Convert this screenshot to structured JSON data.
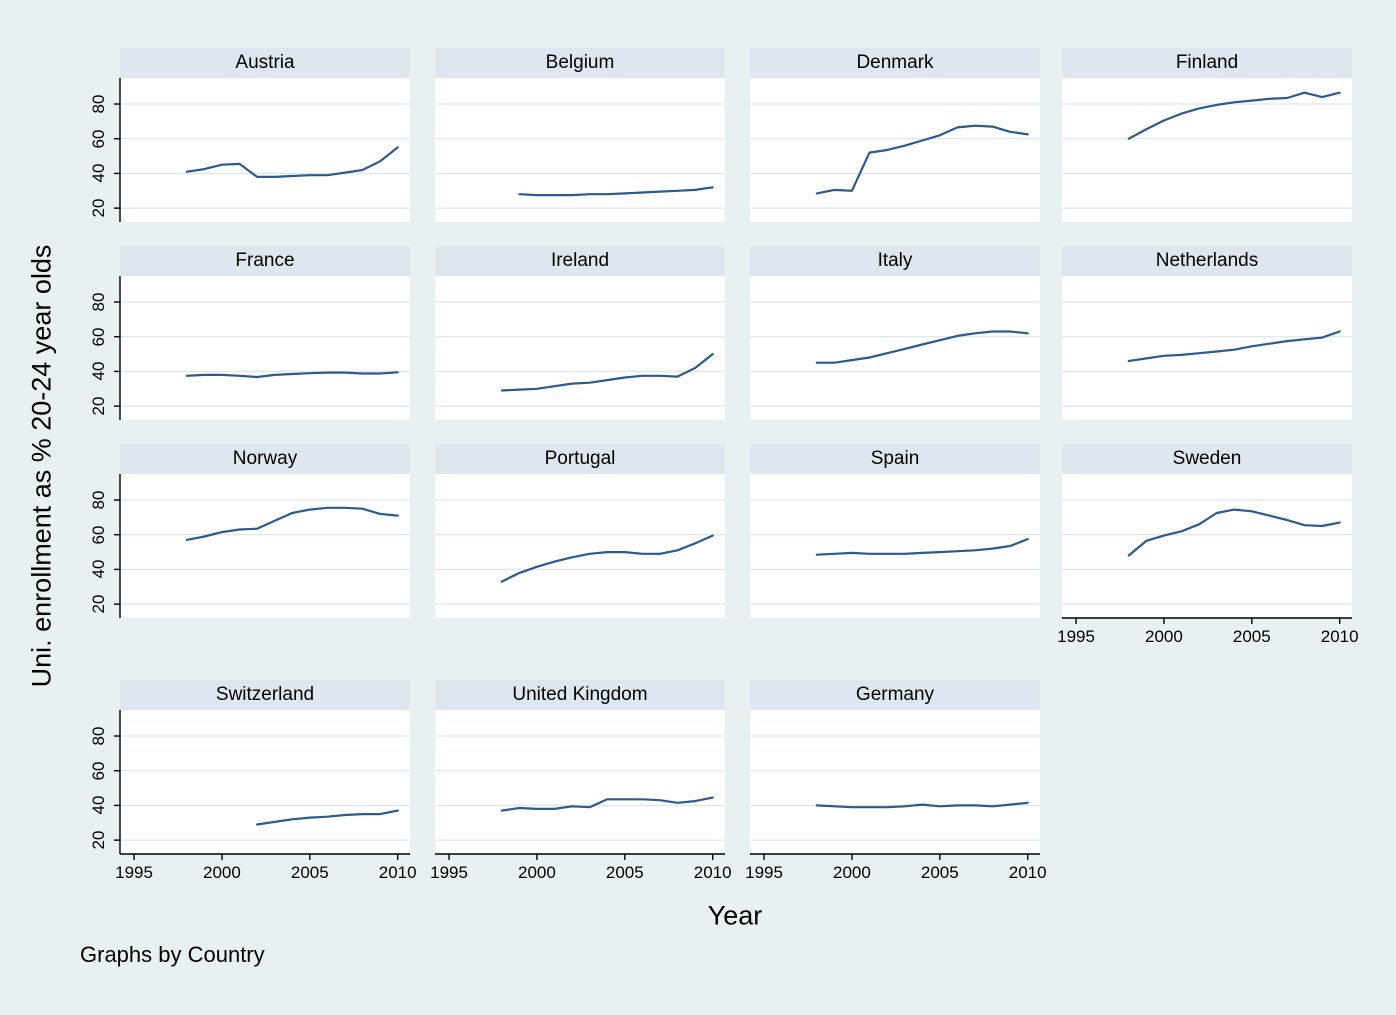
{
  "figure": {
    "ylabel": "Uni. enrollment as % 20-24 year olds",
    "xlabel": "Year",
    "note": "Graphs by Country"
  },
  "colors": {
    "background": "#e9f0f1",
    "panel_header_bg": "#dee7ef",
    "plot_bg": "#ffffff",
    "gridline": "#dce6ec",
    "line": "#2d5a8c",
    "axis": "#000000",
    "text": "#000000"
  },
  "chart_data": {
    "type": "line",
    "small_multiples": true,
    "title": "",
    "xlabel": "Year",
    "ylabel": "Uni. enrollment as % 20-24 year olds",
    "note": "Graphs by Country",
    "y_ticks": [
      20,
      40,
      60,
      80
    ],
    "x_ticks": [
      1995,
      2000,
      2005,
      2010
    ],
    "y_domain": [
      12,
      95
    ],
    "x_domain": [
      1994.2,
      2010.7
    ],
    "grid": true,
    "legend": "none",
    "panels": [
      {
        "name": "Austria",
        "row": 1,
        "col": 1,
        "years": [
          1998,
          1999,
          2000,
          2001,
          2002,
          2003,
          2004,
          2005,
          2006,
          2007,
          2008,
          2009,
          2010
        ],
        "values": [
          41,
          42.5,
          45,
          45.5,
          38,
          38,
          38.5,
          39,
          39,
          40.5,
          42,
          47,
          55
        ]
      },
      {
        "name": "Belgium",
        "row": 1,
        "col": 2,
        "years": [
          1999,
          2000,
          2001,
          2002,
          2003,
          2004,
          2005,
          2006,
          2007,
          2008,
          2009,
          2010
        ],
        "values": [
          28,
          27.5,
          27.5,
          27.5,
          28,
          28,
          28.5,
          29,
          29.5,
          30,
          30.5,
          32
        ]
      },
      {
        "name": "Denmark",
        "row": 1,
        "col": 3,
        "years": [
          1998,
          1999,
          2000,
          2001,
          2002,
          2003,
          2004,
          2005,
          2006,
          2007,
          2008,
          2009,
          2010
        ],
        "values": [
          28.5,
          30.5,
          30,
          52,
          53.5,
          56,
          59,
          62,
          66.5,
          67.5,
          67,
          64,
          62.5
        ]
      },
      {
        "name": "Finland",
        "row": 1,
        "col": 4,
        "years": [
          1998,
          1999,
          2000,
          2001,
          2002,
          2003,
          2004,
          2005,
          2006,
          2007,
          2008,
          2009,
          2010
        ],
        "values": [
          60,
          65.5,
          70.5,
          74.5,
          77.5,
          79.5,
          81,
          82,
          83,
          83.5,
          86.5,
          84,
          86.5
        ]
      },
      {
        "name": "France",
        "row": 2,
        "col": 1,
        "years": [
          1998,
          1999,
          2000,
          2001,
          2002,
          2003,
          2004,
          2005,
          2006,
          2007,
          2008,
          2009,
          2010
        ],
        "values": [
          37.5,
          38,
          38,
          37.5,
          36.8,
          38,
          38.5,
          39,
          39.3,
          39.3,
          38.8,
          38.8,
          39.5
        ]
      },
      {
        "name": "Ireland",
        "row": 2,
        "col": 2,
        "years": [
          1998,
          1999,
          2000,
          2001,
          2002,
          2003,
          2004,
          2005,
          2006,
          2007,
          2008,
          2009,
          2010
        ],
        "values": [
          29,
          29.5,
          30,
          31.5,
          33,
          33.5,
          35,
          36.5,
          37.5,
          37.5,
          37,
          42,
          50
        ]
      },
      {
        "name": "Italy",
        "row": 2,
        "col": 3,
        "years": [
          1998,
          1999,
          2000,
          2001,
          2002,
          2003,
          2004,
          2005,
          2006,
          2007,
          2008,
          2009,
          2010
        ],
        "values": [
          45,
          45,
          46.5,
          48,
          50.5,
          53,
          55.5,
          58,
          60.5,
          62,
          63,
          63,
          62
        ]
      },
      {
        "name": "Netherlands",
        "row": 2,
        "col": 4,
        "years": [
          1998,
          1999,
          2000,
          2001,
          2002,
          2003,
          2004,
          2005,
          2006,
          2007,
          2008,
          2009,
          2010
        ],
        "values": [
          46,
          47.5,
          49,
          49.5,
          50.5,
          51.5,
          52.5,
          54.5,
          56,
          57.5,
          58.5,
          59.5,
          63
        ]
      },
      {
        "name": "Norway",
        "row": 3,
        "col": 1,
        "years": [
          1998,
          1999,
          2000,
          2001,
          2002,
          2003,
          2004,
          2005,
          2006,
          2007,
          2008,
          2009,
          2010
        ],
        "values": [
          57,
          59,
          61.5,
          63,
          63.5,
          68,
          72.5,
          74.5,
          75.5,
          75.5,
          75,
          72,
          71
        ]
      },
      {
        "name": "Portugal",
        "row": 3,
        "col": 2,
        "years": [
          1998,
          1999,
          2000,
          2001,
          2002,
          2003,
          2004,
          2005,
          2006,
          2007,
          2008,
          2009,
          2010
        ],
        "values": [
          33,
          38,
          41.5,
          44.5,
          47,
          49,
          50,
          50,
          49,
          49,
          51,
          55,
          59.5
        ]
      },
      {
        "name": "Spain",
        "row": 3,
        "col": 3,
        "years": [
          1998,
          1999,
          2000,
          2001,
          2002,
          2003,
          2004,
          2005,
          2006,
          2007,
          2008,
          2009,
          2010
        ],
        "values": [
          48.5,
          49,
          49.5,
          49,
          49,
          49,
          49.5,
          50,
          50.5,
          51,
          52,
          53.5,
          57.5
        ]
      },
      {
        "name": "Sweden",
        "row": 3,
        "col": 4,
        "years": [
          1998,
          1999,
          2000,
          2001,
          2002,
          2003,
          2004,
          2005,
          2006,
          2007,
          2008,
          2009,
          2010
        ],
        "values": [
          48,
          56.5,
          59.5,
          62,
          66,
          72.5,
          74.5,
          73.5,
          71,
          68.5,
          65.5,
          65,
          67
        ]
      },
      {
        "name": "Switzerland",
        "row": 4,
        "col": 1,
        "years": [
          2002,
          2003,
          2004,
          2005,
          2006,
          2007,
          2008,
          2009,
          2010
        ],
        "values": [
          29,
          30.5,
          32,
          33,
          33.5,
          34.5,
          35,
          35,
          37
        ]
      },
      {
        "name": "United Kingdom",
        "row": 4,
        "col": 2,
        "years": [
          1998,
          1999,
          2000,
          2001,
          2002,
          2003,
          2004,
          2005,
          2006,
          2007,
          2008,
          2009,
          2010
        ],
        "values": [
          37,
          38.5,
          38,
          38,
          39.5,
          39,
          43.5,
          43.5,
          43.5,
          43,
          41.5,
          42.5,
          44.5
        ]
      },
      {
        "name": "Germany",
        "row": 4,
        "col": 3,
        "years": [
          1998,
          1999,
          2000,
          2001,
          2002,
          2003,
          2004,
          2005,
          2006,
          2007,
          2008,
          2009,
          2010
        ],
        "values": [
          40,
          39.5,
          39,
          39,
          39,
          39.5,
          40.5,
          39.5,
          40,
          40,
          39.5,
          40.5,
          41.5
        ]
      }
    ]
  }
}
